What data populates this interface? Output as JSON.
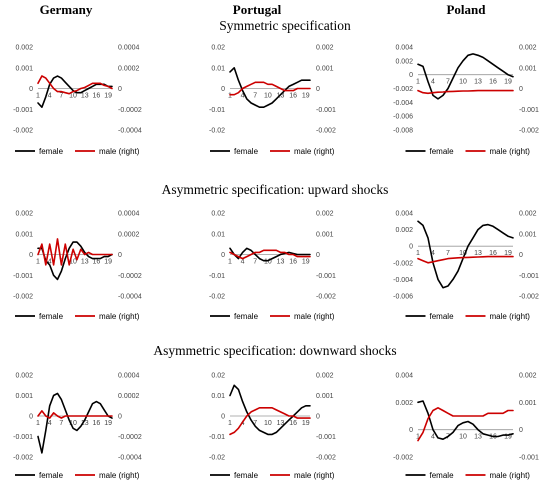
{
  "columns": [
    "Germany",
    "Portugal",
    "Poland"
  ],
  "sections": [
    "Symmetric specification",
    "Asymmetric specification: upward shocks",
    "Asymmetric specification: downward shocks"
  ],
  "legend": {
    "female": "female",
    "male": "male (right)"
  },
  "colors": {
    "female": "#000000",
    "male": "#cc0000",
    "axis": "#999999"
  },
  "x_ticks": [
    "1",
    "4",
    "7",
    "10",
    "13",
    "16",
    "19"
  ],
  "chart_data": [
    {
      "type": "line",
      "panel": "germany-symmetric",
      "left": {
        "min": -0.002,
        "max": 0.002,
        "ticks": [
          "-0.002",
          "-0.001",
          "0",
          "0.001",
          "0.002"
        ]
      },
      "right": {
        "min": -0.0004,
        "max": 0.0004,
        "ticks": [
          "-0.0004",
          "-0.0002",
          "0",
          "0.0002",
          "0.0004"
        ]
      },
      "series": [
        {
          "name": "female",
          "axis": "left",
          "values": [
            -0.0007,
            -0.0009,
            -0.0004,
            0.0002,
            0.0005,
            0.0006,
            0.0005,
            0.0003,
            0.0001,
            -0.0001,
            -0.0002,
            -0.0002,
            -0.0001,
            0,
            0.0001,
            0.0002,
            0.0002,
            0.0002,
            0.0001,
            0.0001
          ]
        },
        {
          "name": "male (right)",
          "axis": "right",
          "values": [
            5e-05,
            0.00012,
            0.0001,
            5e-05,
            0,
            -3e-05,
            -3e-05,
            -4e-05,
            -5e-05,
            -3e-05,
            -2e-05,
            0,
            1e-05,
            3e-05,
            5e-05,
            5e-05,
            5e-05,
            3e-05,
            2e-05,
            0
          ]
        }
      ]
    },
    {
      "type": "line",
      "panel": "portugal-symmetric",
      "left": {
        "min": -0.02,
        "max": 0.02,
        "ticks": [
          "-0.02",
          "-0.01",
          "0",
          "0.01",
          "0.02"
        ]
      },
      "right": {
        "min": -0.002,
        "max": 0.002,
        "ticks": [
          "-0.002",
          "-0.001",
          "0",
          "0.001",
          "0.002"
        ]
      },
      "series": [
        {
          "name": "female",
          "axis": "left",
          "values": [
            0.008,
            0.01,
            0.004,
            -0.001,
            -0.005,
            -0.007,
            -0.008,
            -0.009,
            -0.009,
            -0.008,
            -0.007,
            -0.005,
            -0.003,
            -0.001,
            0.001,
            0.002,
            0.003,
            0.004,
            0.004,
            0.004
          ]
        },
        {
          "name": "male (right)",
          "axis": "right",
          "values": [
            -0.0003,
            -0.0003,
            -0.0002,
            0,
            0.0001,
            0.0002,
            0.0003,
            0.0003,
            0.0003,
            0.0002,
            0.0002,
            0.0001,
            0,
            -0.0001,
            -0.0001,
            -0.0001,
            0,
            0,
            0,
            0
          ]
        }
      ]
    },
    {
      "type": "line",
      "panel": "poland-symmetric",
      "left": {
        "min": -0.008,
        "max": 0.004,
        "ticks": [
          "-0.008",
          "-0.006",
          "-0.004",
          "-0.002",
          "0",
          "0.002",
          "0.004"
        ]
      },
      "right": {
        "min": -0.002,
        "max": 0.002,
        "ticks": [
          "-0.002",
          "-0.001",
          "0",
          "0.001",
          "0.002"
        ]
      },
      "series": [
        {
          "name": "female",
          "axis": "left",
          "values": [
            0.0015,
            0.0012,
            -0.001,
            -0.003,
            -0.0035,
            -0.003,
            -0.002,
            -0.0005,
            0.001,
            0.002,
            0.0028,
            0.003,
            0.0028,
            0.0025,
            0.002,
            0.0015,
            0.001,
            0.0005,
            0,
            -0.0003
          ]
        },
        {
          "name": "male (right)",
          "axis": "right",
          "values": [
            -0.0001,
            -0.0002,
            -0.00023,
            -0.0002,
            -0.00018,
            -0.00017,
            -0.00015,
            -0.00014,
            -0.00013,
            -0.00012,
            -0.00012,
            -0.00011,
            -0.0001,
            -0.0001,
            -0.0001,
            -0.0001,
            -0.0001,
            -0.0001,
            -0.0001,
            -0.0001
          ]
        }
      ]
    },
    {
      "type": "line",
      "panel": "germany-upward",
      "left": {
        "min": -0.002,
        "max": 0.002,
        "ticks": [
          "-0.002",
          "-0.001",
          "0",
          "0.001",
          "0.002"
        ]
      },
      "right": {
        "min": -0.0004,
        "max": 0.0004,
        "ticks": [
          "-0.0004",
          "-0.0002",
          "0",
          "0.0002",
          "0.0004"
        ]
      },
      "series": [
        {
          "name": "female",
          "axis": "left",
          "values": [
            0.0003,
            0.0003,
            -0.0003,
            -0.0005,
            -0.001,
            -0.0012,
            -0.0008,
            -0.0002,
            0.0003,
            0.0006,
            0.0006,
            0.0004,
            0.0001,
            -0.0001,
            -0.0002,
            -0.0002,
            -0.0002,
            -0.0001,
            -0.0001,
            0
          ]
        },
        {
          "name": "male (right)",
          "axis": "right",
          "values": [
            0,
            0.0001,
            -0.0001,
            0.0001,
            -0.0001,
            0.00015,
            -0.0001,
            0.0001,
            -0.0001,
            5e-05,
            -5e-05,
            5e-05,
            0,
            2e-05,
            0,
            0,
            0,
            0,
            0,
            0
          ]
        }
      ]
    },
    {
      "type": "line",
      "panel": "portugal-upward",
      "left": {
        "min": -0.02,
        "max": 0.02,
        "ticks": [
          "-0.02",
          "-0.01",
          "0",
          "0.01",
          "0.02"
        ]
      },
      "right": {
        "min": -0.002,
        "max": 0.002,
        "ticks": [
          "-0.002",
          "-0.001",
          "0",
          "0.001",
          "0.002"
        ]
      },
      "series": [
        {
          "name": "female",
          "axis": "left",
          "values": [
            0.003,
            0.0,
            -0.002,
            0.001,
            0.003,
            0.002,
            0.0,
            -0.002,
            -0.003,
            -0.003,
            -0.002,
            -0.001,
            0.0,
            0.0005,
            0.001,
            0.0005,
            0,
            0,
            0,
            0
          ]
        },
        {
          "name": "male (right)",
          "axis": "right",
          "values": [
            0.0001,
            0,
            -0.0001,
            -0.0002,
            -0.0001,
            0,
            0.0001,
            0.0001,
            0.0002,
            0.0002,
            0.0002,
            0.0002,
            0.0001,
            0.0001,
            0,
            0,
            -0.0001,
            -0.0001,
            -0.0001,
            -0.0001
          ]
        }
      ]
    },
    {
      "type": "line",
      "panel": "poland-upward",
      "left": {
        "min": -0.006,
        "max": 0.004,
        "ticks": [
          "-0.006",
          "-0.004",
          "-0.002",
          "0",
          "0.002",
          "0.004"
        ]
      },
      "right": {
        "min": -0.002,
        "max": 0.002,
        "ticks": [
          "-0.002",
          "-0.001",
          "0",
          "0.001",
          "0.002"
        ]
      },
      "series": [
        {
          "name": "female",
          "axis": "left",
          "values": [
            0.003,
            0.0025,
            0.001,
            -0.002,
            -0.004,
            -0.005,
            -0.0048,
            -0.004,
            -0.003,
            -0.0015,
            0,
            0.001,
            0.002,
            0.0025,
            0.0026,
            0.0024,
            0.002,
            0.0016,
            0.0012,
            0.001
          ]
        },
        {
          "name": "male (right)",
          "axis": "right",
          "values": [
            -0.0002,
            -0.0003,
            -0.0004,
            -0.00035,
            -0.0003,
            -0.00025,
            -0.0002,
            -0.00018,
            -0.00016,
            -0.00015,
            -0.00014,
            -0.00013,
            -0.00012,
            -0.00011,
            -0.0001,
            -0.0001,
            -0.0001,
            -0.0001,
            -0.0001,
            -0.0001
          ]
        }
      ]
    },
    {
      "type": "line",
      "panel": "germany-downward",
      "left": {
        "min": -0.002,
        "max": 0.002,
        "ticks": [
          "-0.002",
          "-0.001",
          "0",
          "0.001",
          "0.002"
        ]
      },
      "right": {
        "min": -0.0004,
        "max": 0.0004,
        "ticks": [
          "-0.0004",
          "-0.0002",
          "0",
          "0.0002",
          "0.0004"
        ]
      },
      "series": [
        {
          "name": "female",
          "axis": "left",
          "values": [
            -0.001,
            -0.0018,
            -0.0007,
            0.0005,
            0.001,
            0.0011,
            0.0008,
            0.0003,
            -0.0002,
            -0.0006,
            -0.0007,
            -0.0005,
            -0.0002,
            0.0002,
            0.0006,
            0.0007,
            0.0006,
            0.0003,
            0,
            -0.0001
          ]
        },
        {
          "name": "male (right)",
          "axis": "right",
          "values": [
            0,
            5e-05,
            0,
            -2e-05,
            3e-05,
            0,
            -2e-05,
            0,
            0,
            0,
            0,
            0,
            0,
            0,
            0,
            0,
            0,
            0,
            0,
            0
          ]
        }
      ]
    },
    {
      "type": "line",
      "panel": "portugal-downward",
      "left": {
        "min": -0.02,
        "max": 0.02,
        "ticks": [
          "-0.02",
          "-0.01",
          "0",
          "0.01",
          "0.02"
        ]
      },
      "right": {
        "min": -0.002,
        "max": 0.002,
        "ticks": [
          "-0.002",
          "-0.001",
          "0",
          "0.001",
          "0.002"
        ]
      },
      "series": [
        {
          "name": "female",
          "axis": "left",
          "values": [
            0.01,
            0.015,
            0.013,
            0.007,
            0.002,
            -0.002,
            -0.005,
            -0.007,
            -0.008,
            -0.009,
            -0.009,
            -0.008,
            -0.006,
            -0.004,
            -0.002,
            0,
            0.002,
            0.004,
            0.005,
            0.005
          ]
        },
        {
          "name": "male (right)",
          "axis": "right",
          "values": [
            -0.0009,
            -0.0008,
            -0.0006,
            -0.0003,
            0,
            0.0002,
            0.0003,
            0.0004,
            0.0004,
            0.0004,
            0.0004,
            0.0003,
            0.0002,
            0.0001,
            0,
            0,
            -0.0001,
            -0.0001,
            -0.0001,
            -0.0001
          ]
        }
      ]
    },
    {
      "type": "line",
      "panel": "poland-downward",
      "left": {
        "min": -0.002,
        "max": 0.004,
        "ticks": [
          "-0.002",
          "0",
          "0.002",
          "0.004"
        ]
      },
      "right": {
        "min": -0.001,
        "max": 0.002,
        "ticks": [
          "-0.001",
          "0",
          "0.001",
          "0.002"
        ]
      },
      "series": [
        {
          "name": "female",
          "axis": "left",
          "values": [
            0.002,
            0.0021,
            0.0012,
            0.0,
            -0.0006,
            -0.0007,
            -0.0005,
            -0.0002,
            0.0003,
            0.0005,
            0.0006,
            0.0004,
            0.0,
            -0.0003,
            -0.0004,
            -0.0005,
            -0.0005,
            -0.0004,
            -0.0004,
            -0.0003
          ]
        },
        {
          "name": "male (right)",
          "axis": "right",
          "values": [
            -0.0004,
            -0.0001,
            0.0004,
            0.0007,
            0.0008,
            0.0007,
            0.0006,
            0.0005,
            0.0005,
            0.0005,
            0.0005,
            0.0005,
            0.0005,
            0.0005,
            0.0006,
            0.0006,
            0.0006,
            0.0006,
            0.0007,
            0.0007
          ]
        }
      ]
    }
  ]
}
